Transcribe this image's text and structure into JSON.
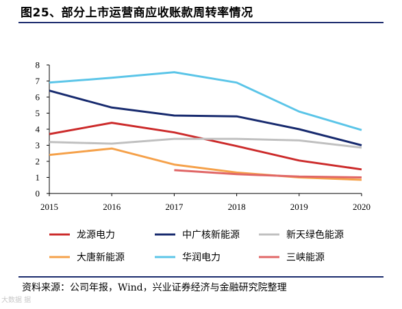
{
  "title": "图25、部分上市运营商应收账款周转率情况",
  "source": "资料来源：公司年报，Wind，兴业证券经济与金融研究院整理",
  "watermark": "大数据 据",
  "chart_data": {
    "type": "line",
    "title": "",
    "xlabel": "",
    "ylabel": "",
    "x": [
      "2015",
      "2016",
      "2017",
      "2018",
      "2019",
      "2020"
    ],
    "ylim": [
      0,
      8
    ],
    "yticks": [
      0,
      1,
      2,
      3,
      4,
      5,
      6,
      7,
      8
    ],
    "grid": false,
    "legend_position": "bottom",
    "series": [
      {
        "name": "龙源电力",
        "color": "#cc2b2b",
        "values": [
          3.7,
          4.4,
          3.8,
          2.95,
          2.05,
          1.5
        ]
      },
      {
        "name": "中广核新能源",
        "color": "#172a6e",
        "values": [
          6.4,
          5.35,
          4.85,
          4.8,
          4.0,
          3.0
        ]
      },
      {
        "name": "新天绿色能源",
        "color": "#c0c0c0",
        "values": [
          3.2,
          3.1,
          3.4,
          3.4,
          3.3,
          2.85
        ]
      },
      {
        "name": "大唐新能源",
        "color": "#f5a14a",
        "values": [
          2.4,
          2.8,
          1.8,
          1.3,
          1.0,
          0.85
        ]
      },
      {
        "name": "华润电力",
        "color": "#5bc5e8",
        "values": [
          6.9,
          7.2,
          7.55,
          6.9,
          5.1,
          3.95
        ]
      },
      {
        "name": "三峡能源",
        "color": "#e06666",
        "values": [
          null,
          null,
          1.45,
          1.2,
          1.05,
          1.0
        ]
      }
    ]
  }
}
